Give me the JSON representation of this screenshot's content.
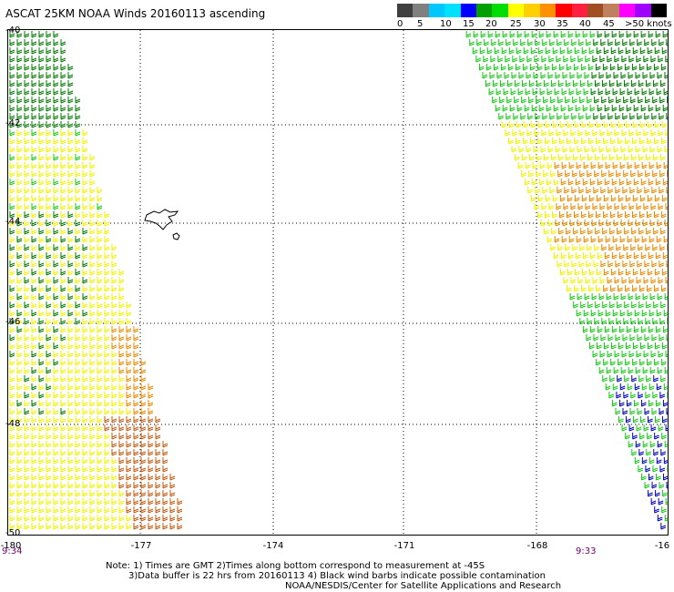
{
  "title": "ASCAT 25KM NOAA Winds 20160113 ascending",
  "scale": {
    "swatches": [
      "#404040",
      "#808080",
      "#00c8ff",
      "#00e0ff",
      "#0000ff",
      "#00a000",
      "#00dd00",
      "#ffff00",
      "#ffd000",
      "#ff9000",
      "#ff0000",
      "#ff2040",
      "#a05020",
      "#c08060",
      "#ff00ff",
      "#a000ff",
      "#000000"
    ],
    "labels": [
      "0",
      "5",
      "10",
      "15",
      "20",
      "25",
      "30",
      "35",
      "40",
      "45",
      ">50 knots"
    ]
  },
  "map": {
    "lat_labels": [
      "-40",
      "-42",
      "-44",
      "-46",
      "-48",
      "-50"
    ],
    "lon_labels": [
      "-180",
      "-177",
      "-174",
      "-171",
      "-168",
      "-16"
    ],
    "time_left": "9:34",
    "time_right": "9:33",
    "colors": {
      "green_dark": "#007a00",
      "green": "#18c818",
      "yellow": "#f2f200",
      "orange": "#e88a00",
      "brown": "#c05a10",
      "blue": "#0000c0"
    }
  },
  "note": {
    "line1": "Note: 1) Times are GMT 2)Times along bottom correspond to measurement at -45S",
    "line2": "3)Data buffer is 22 hrs from 20160113 4) Black wind barbs indicate possible contamination",
    "line3": "NOAA/NESDIS/Center for Satellite Applications and Research"
  }
}
